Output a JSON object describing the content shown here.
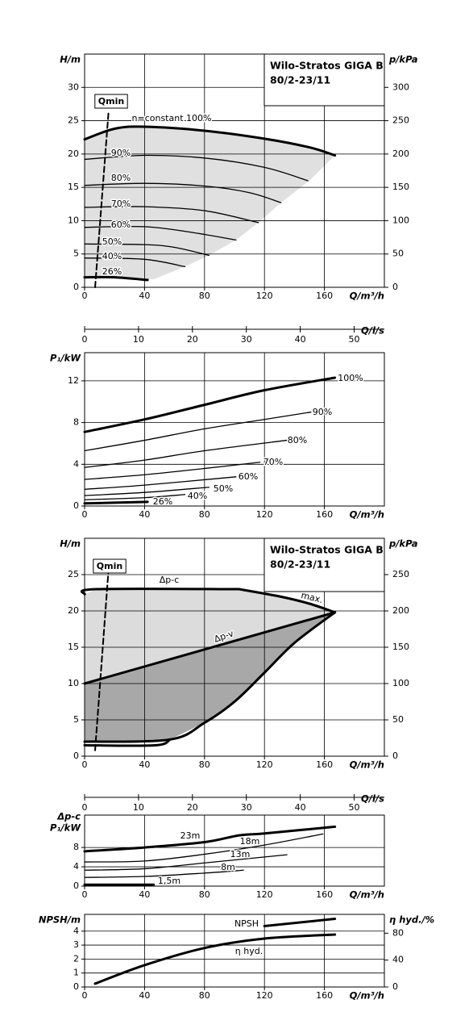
{
  "chart_data": [
    {
      "type": "line",
      "title": [
        "Wilo-Stratos GIGA B",
        "80/2-23/11"
      ],
      "ylabel": "H/m",
      "y2label": "p/kPa",
      "xlabel": "Q/m³/h",
      "xlim": [
        0,
        200
      ],
      "ylim": [
        0,
        35
      ],
      "y2lim": [
        0,
        350
      ],
      "xticks": [
        0,
        40,
        80,
        120,
        160
      ],
      "yticks": [
        0,
        5,
        10,
        15,
        20,
        25,
        30
      ],
      "y2ticks": [
        0,
        50,
        100,
        150,
        200,
        250,
        300
      ],
      "grid": true,
      "series": [
        {
          "fill": "#e0e0e0",
          "x": [
            0,
            20,
            40,
            80,
            120,
            150,
            167,
            150,
            131,
            116,
            101,
            83,
            67,
            46,
            20,
            0
          ],
          "values": [
            22.2,
            23.8,
            24.1,
            23.5,
            22.3,
            21,
            19.8,
            16,
            12.7,
            9.7,
            7.1,
            4.8,
            3.1,
            1.2,
            1.5,
            1.5
          ]
        },
        {
          "name": "n=constant 100%",
          "color": "#000000",
          "width": 3,
          "x": [
            0,
            20,
            40,
            80,
            120,
            150,
            167
          ],
          "values": [
            22.2,
            23.8,
            24.1,
            23.5,
            22.3,
            21,
            19.8
          ]
        },
        {
          "name": "90%",
          "color": "#000000",
          "width": 1.3,
          "x": [
            0,
            40,
            80,
            120,
            149
          ],
          "values": [
            19.2,
            19.8,
            19.4,
            18,
            16
          ]
        },
        {
          "name": "80%",
          "color": "#000000",
          "width": 1.3,
          "x": [
            0,
            40,
            80,
            110,
            131
          ],
          "values": [
            15.3,
            15.6,
            15.2,
            14.2,
            12.7
          ]
        },
        {
          "name": "70%",
          "color": "#000000",
          "width": 1.3,
          "x": [
            0,
            40,
            80,
            116
          ],
          "values": [
            12,
            12.1,
            11.5,
            9.7
          ]
        },
        {
          "name": "60%",
          "color": "#000000",
          "width": 1.3,
          "x": [
            0,
            40,
            70,
            101
          ],
          "values": [
            9,
            9.1,
            8.3,
            7.1
          ]
        },
        {
          "name": "50%",
          "color": "#000000",
          "width": 1.3,
          "x": [
            0,
            40,
            60,
            83
          ],
          "values": [
            6.5,
            6.4,
            6,
            4.8
          ]
        },
        {
          "name": "40%",
          "color": "#000000",
          "width": 1.3,
          "x": [
            0,
            40,
            67
          ],
          "values": [
            4.4,
            4.2,
            3.1
          ]
        },
        {
          "name": "26%",
          "color": "#000000",
          "width": 3,
          "x": [
            0,
            20,
            42
          ],
          "values": [
            1.5,
            1.5,
            1.1
          ]
        },
        {
          "name": "Qmin",
          "color": "#000000",
          "width": 2,
          "dashed": true,
          "x": [
            7,
            16
          ],
          "values": [
            0,
            26.4
          ]
        }
      ]
    },
    {
      "type": "axis",
      "xlabel": "Q/l/s",
      "xlim": [
        0,
        55.6
      ],
      "xticks": [
        0,
        10,
        20,
        30,
        40,
        50
      ]
    },
    {
      "type": "line",
      "ylabel": "P₁/kW",
      "xlabel": "Q/m³/h",
      "xlim": [
        0,
        200
      ],
      "ylim": [
        0,
        14.7
      ],
      "xticks": [
        0,
        40,
        80,
        120,
        160
      ],
      "yticks": [
        0,
        4,
        8,
        12
      ],
      "grid": true,
      "series": [
        {
          "name": "100%",
          "color": "#000000",
          "width": 3,
          "x": [
            0,
            40,
            80,
            120,
            167
          ],
          "values": [
            7.1,
            8.3,
            9.7,
            11.1,
            12.3
          ]
        },
        {
          "name": "90%",
          "color": "#000000",
          "width": 1.3,
          "x": [
            0,
            40,
            80,
            120,
            151
          ],
          "values": [
            5.3,
            6.3,
            7.4,
            8.3,
            9
          ]
        },
        {
          "name": "80%",
          "color": "#000000",
          "width": 1.3,
          "x": [
            0,
            40,
            80,
            135
          ],
          "values": [
            3.7,
            4.4,
            5.3,
            6.3
          ]
        },
        {
          "name": "70%",
          "color": "#000000",
          "width": 1.3,
          "x": [
            0,
            40,
            80,
            117
          ],
          "values": [
            2.55,
            3,
            3.6,
            4.2
          ]
        },
        {
          "name": "60%",
          "color": "#000000",
          "width": 1.3,
          "x": [
            0,
            40,
            101
          ],
          "values": [
            1.6,
            2,
            2.8
          ]
        },
        {
          "name": "50%",
          "color": "#000000",
          "width": 1.3,
          "x": [
            0,
            40,
            83
          ],
          "values": [
            1,
            1.3,
            1.8
          ]
        },
        {
          "name": "40%",
          "color": "#000000",
          "width": 1.3,
          "x": [
            0,
            40,
            67
          ],
          "values": [
            0.6,
            0.8,
            1.1
          ]
        },
        {
          "name": "26%",
          "color": "#000000",
          "width": 3,
          "x": [
            0,
            42
          ],
          "values": [
            0.25,
            0.4
          ]
        }
      ]
    },
    {
      "type": "line",
      "title": [
        "Wilo-Stratos GIGA B",
        "80/2-23/11"
      ],
      "ylabel": "H/m",
      "y2label": "p/kPa",
      "xlabel": "Q/m³/h",
      "xlim": [
        0,
        200
      ],
      "ylim": [
        0,
        30
      ],
      "y2lim": [
        0,
        300
      ],
      "xticks": [
        0,
        40,
        80,
        120,
        160
      ],
      "yticks": [
        0,
        5,
        10,
        15,
        20,
        25
      ],
      "y2ticks": [
        0,
        50,
        100,
        150,
        200,
        250
      ],
      "grid": true,
      "series": [
        {
          "fill": "#dcdcdc",
          "x": [
            0,
            8,
            103,
            130,
            150,
            167,
            0
          ],
          "values": [
            22.3,
            23,
            23,
            22,
            21,
            19.8,
            10
          ]
        },
        {
          "fill": "#a8a8a8",
          "x": [
            0,
            167,
            140,
            120,
            100,
            80,
            57,
            0
          ],
          "values": [
            10,
            19.8,
            15.6,
            11.5,
            7.5,
            4.6,
            2.3,
            2
          ]
        },
        {
          "name": "Δp-c",
          "color": "#000000",
          "width": 3,
          "x": [
            0,
            8,
            103
          ],
          "values": [
            22.3,
            23,
            23
          ]
        },
        {
          "name": "max.",
          "color": "#000000",
          "width": 3,
          "x": [
            103,
            130,
            150,
            167
          ],
          "values": [
            23,
            22,
            21,
            19.8
          ]
        },
        {
          "name": "Δp-v",
          "color": "#000000",
          "width": 3,
          "x": [
            0,
            167
          ],
          "values": [
            10,
            19.8
          ]
        },
        {
          "color": "#000000",
          "width": 3,
          "x": [
            0,
            57,
            80,
            100,
            120,
            140,
            167
          ],
          "values": [
            2,
            2.3,
            4.6,
            7.5,
            11.5,
            15.6,
            19.8
          ]
        },
        {
          "color": "#000000",
          "width": 3,
          "x": [
            0,
            47,
            57
          ],
          "values": [
            1.5,
            1.5,
            2.3
          ]
        },
        {
          "name": "Qmin",
          "color": "#000000",
          "width": 2,
          "dashed": true,
          "x": [
            7,
            16
          ],
          "values": [
            0.8,
            25.8
          ]
        }
      ]
    },
    {
      "type": "axis",
      "xlabel": "Q/l/s",
      "xlim": [
        0,
        55.6
      ],
      "xticks": [
        0,
        10,
        20,
        30,
        40,
        50
      ]
    },
    {
      "type": "line",
      "ylabel": [
        "Δp-c",
        "P₁/kW"
      ],
      "xlabel": "Q/m³/h",
      "xlim": [
        0,
        200
      ],
      "ylim": [
        0,
        14.7
      ],
      "xticks": [
        0,
        40,
        80,
        120,
        160
      ],
      "yticks": [
        0,
        4,
        8
      ],
      "grid": true,
      "series": [
        {
          "name": "23m",
          "color": "#000000",
          "width": 3,
          "x": [
            0,
            40,
            80,
            103,
            120,
            167
          ],
          "values": [
            7.2,
            8,
            9.1,
            10.5,
            10.9,
            12.3
          ]
        },
        {
          "name": "18m",
          "color": "#000000",
          "width": 1.3,
          "x": [
            0,
            40,
            80,
            120,
            159
          ],
          "values": [
            5,
            5.2,
            6.6,
            8.5,
            10.8
          ]
        },
        {
          "name": "13m",
          "color": "#000000",
          "width": 1.3,
          "x": [
            0,
            40,
            80,
            135
          ],
          "values": [
            3.3,
            3.6,
            4.8,
            6.5
          ]
        },
        {
          "name": "8m",
          "color": "#000000",
          "width": 1.3,
          "x": [
            0,
            40,
            80,
            106
          ],
          "values": [
            1.8,
            2,
            2.7,
            3.3
          ]
        },
        {
          "name": "1,5m",
          "color": "#000000",
          "width": 3,
          "x": [
            0,
            46
          ],
          "values": [
            0.3,
            0.3
          ]
        }
      ]
    },
    {
      "type": "line",
      "ylabel": "NPSH/m",
      "y2label": "η hyd./%",
      "xlabel": "Q/m³/h",
      "xlim": [
        0,
        200
      ],
      "ylim": [
        0,
        5.2
      ],
      "y2lim": [
        0,
        108
      ],
      "xticks": [
        0,
        40,
        80,
        120,
        160
      ],
      "yticks": [
        0,
        1,
        2,
        3,
        4
      ],
      "y2ticks": [
        0,
        40,
        80
      ],
      "grid": true,
      "series": [
        {
          "name": "NPSH",
          "color": "#000000",
          "width": 3,
          "x": [
            120,
            167
          ],
          "values": [
            4.36,
            4.88
          ]
        },
        {
          "name": "η hyd.",
          "color": "#000000",
          "width": 3,
          "axis": "y2",
          "x": [
            7,
            40,
            80,
            120,
            167
          ],
          "values": [
            5,
            32.5,
            58,
            72,
            78
          ]
        }
      ]
    }
  ]
}
